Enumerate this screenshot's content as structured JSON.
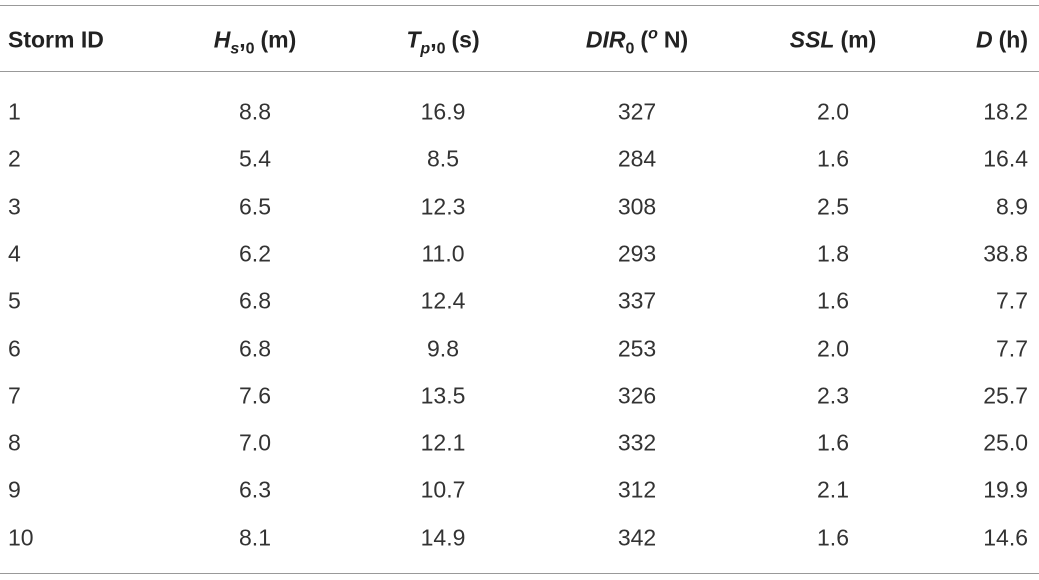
{
  "table": {
    "header": [
      [
        "Storm ID"
      ],
      [
        "H",
        "s",
        ",",
        "0",
        "(m)"
      ],
      [
        "T",
        "p",
        ",",
        "0",
        "(s)"
      ],
      [
        "DIR",
        "0",
        "(",
        "o",
        "N)"
      ],
      [
        "SSL",
        "(m)"
      ],
      [
        "D",
        "(h)"
      ]
    ],
    "rows": [
      [
        "1",
        "8.8",
        "16.9",
        "327",
        "2.0",
        "18.2"
      ],
      [
        "2",
        "5.4",
        "8.5",
        "284",
        "1.6",
        "16.4"
      ],
      [
        "3",
        "6.5",
        "12.3",
        "308",
        "2.5",
        "8.9"
      ],
      [
        "4",
        "6.2",
        "11.0",
        "293",
        "1.8",
        "38.8"
      ],
      [
        "5",
        "6.8",
        "12.4",
        "337",
        "1.6",
        "7.7"
      ],
      [
        "6",
        "6.8",
        "9.8",
        "253",
        "2.0",
        "7.7"
      ],
      [
        "7",
        "7.6",
        "13.5",
        "326",
        "2.3",
        "25.7"
      ],
      [
        "8",
        "7.0",
        "12.1",
        "332",
        "1.6",
        "25.0"
      ],
      [
        "9",
        "6.3",
        "10.7",
        "312",
        "2.1",
        "19.9"
      ],
      [
        "10",
        "8.1",
        "14.9",
        "342",
        "1.6",
        "14.6"
      ]
    ]
  }
}
